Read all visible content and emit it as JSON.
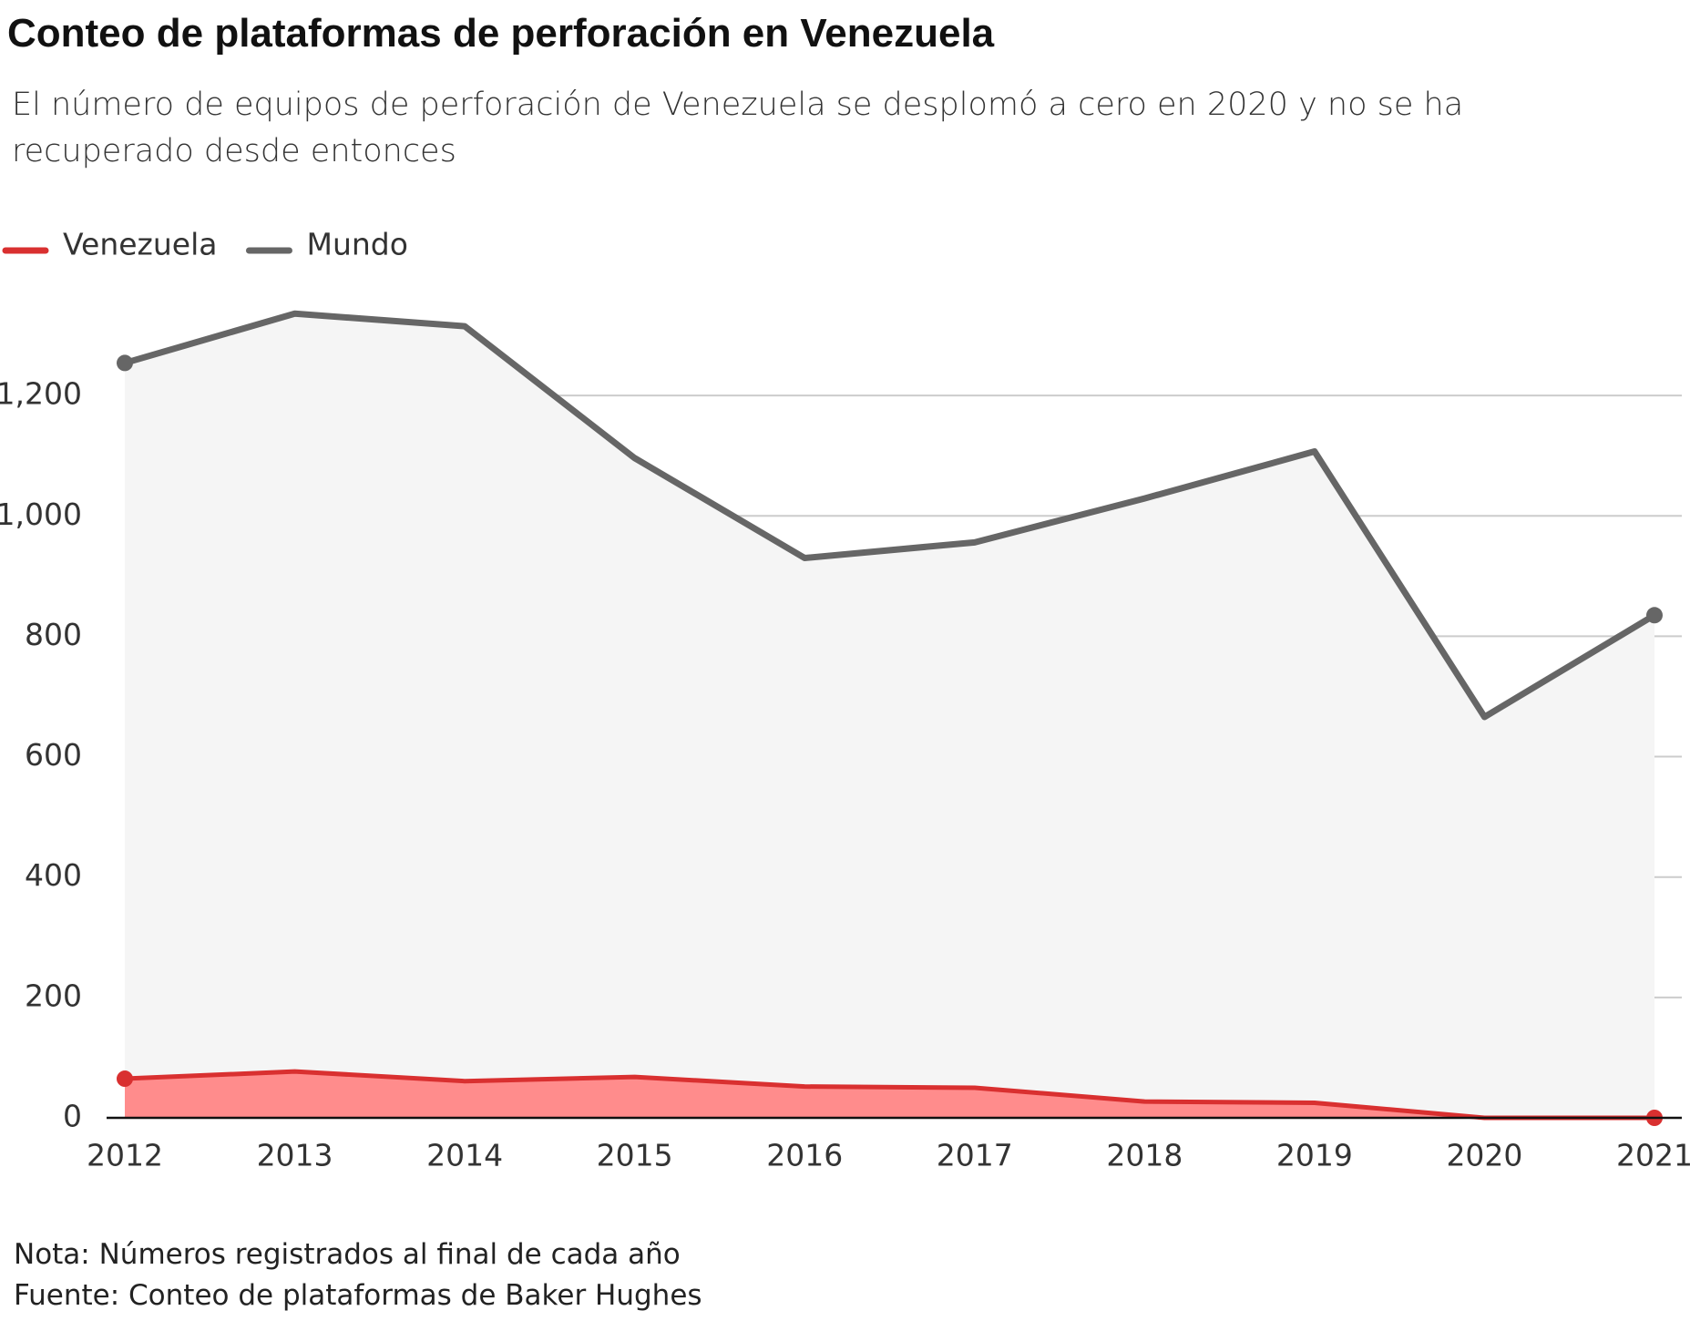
{
  "chart_data": {
    "type": "area-line",
    "title": "Conteo de plataformas de perforación en Venezuela",
    "subtitle": "El número de equipos de perforación de Venezuela se desplomó a cero en 2020 y no se ha recuperado desde entonces",
    "notes": [
      "Nota: Números registrados al final de cada año",
      "Fuente: Conteo de plataformas de Baker Hughes"
    ],
    "x": [
      2012,
      2013,
      2014,
      2015,
      2016,
      2017,
      2018,
      2019,
      2020,
      2021
    ],
    "xlim": [
      2012,
      2021
    ],
    "xticks": [
      2012,
      2013,
      2014,
      2015,
      2016,
      2017,
      2018,
      2019,
      2020,
      2021
    ],
    "ylim": [
      0,
      1350
    ],
    "yticks": [
      0,
      200,
      400,
      600,
      800,
      {
        "value": 1000,
        "label": "1,000"
      },
      {
        "value": 1200,
        "label": "1,200"
      }
    ],
    "grid": true,
    "endpoint_markers": true,
    "series": [
      {
        "name": "Mundo",
        "color": "#666666",
        "fill": "#f5f5f5",
        "values": [
          1254,
          1336,
          1315,
          1096,
          930,
          956,
          1029,
          1107,
          666,
          835
        ]
      },
      {
        "name": "Venezuela",
        "color": "#d93030",
        "fill": "#ff8c8c",
        "values": [
          65,
          77,
          61,
          68,
          52,
          50,
          27,
          25,
          0,
          0
        ]
      }
    ]
  }
}
